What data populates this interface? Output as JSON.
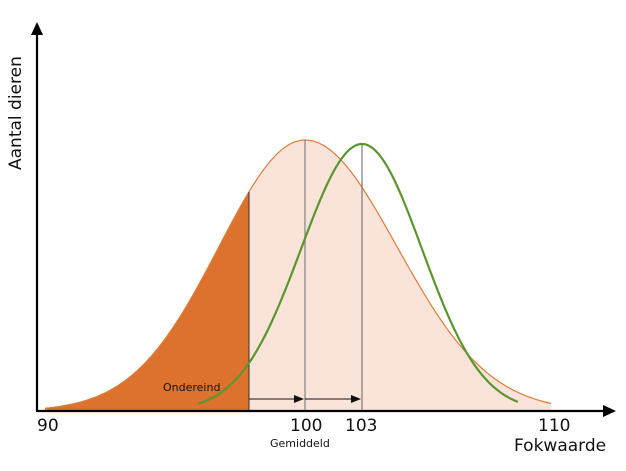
{
  "axes": {
    "y_label": "Aantal dieren",
    "x_label": "Fokwaarde"
  },
  "ticks": {
    "min": "90",
    "mean": "100",
    "shifted_mean": "103",
    "max": "110"
  },
  "annotations": {
    "lower_tail": "Ondereind",
    "mean_label": "Gemiddeld"
  },
  "colors": {
    "population_fill": "#fae3d8",
    "population_line": "#e07b39",
    "tail_fill": "#dc722d",
    "offspring_line": "#5a962e"
  }
}
